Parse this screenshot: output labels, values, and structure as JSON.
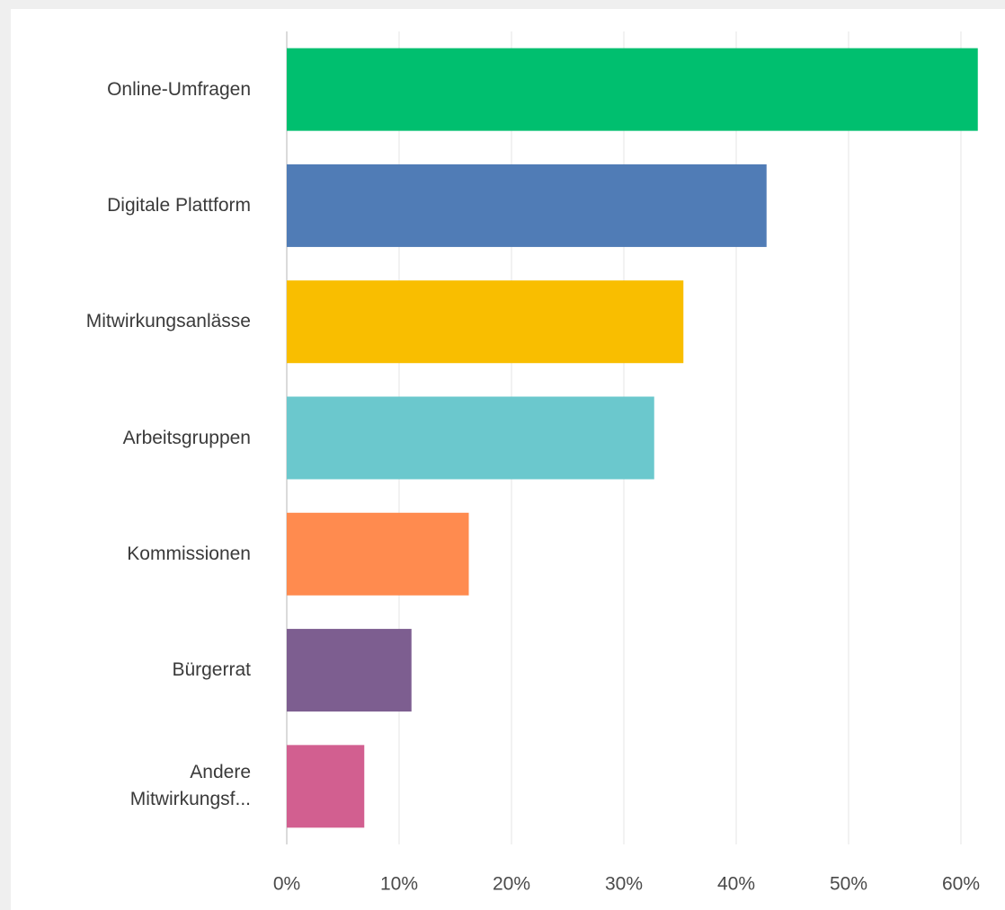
{
  "chart_data": {
    "type": "bar",
    "orientation": "horizontal",
    "categories": [
      "Online-Umfragen",
      "Digitale Plattform",
      "Mitwirkungsanlässe",
      "Arbeitsgruppen",
      "Kommissionen",
      "Bürgerrat",
      "Andere Mitwirkungsf..."
    ],
    "values": [
      61.5,
      42.7,
      35.3,
      32.7,
      16.2,
      11.1,
      6.9
    ],
    "colors": [
      "#00bf6f",
      "#507cb6",
      "#f9be00",
      "#6bc8cd",
      "#ff8b4f",
      "#7d5e90",
      "#d25f90"
    ],
    "xlim": [
      0,
      64
    ],
    "xticks": [
      {
        "value": 0,
        "label": "0%"
      },
      {
        "value": 10,
        "label": "10%"
      },
      {
        "value": 20,
        "label": "20%"
      },
      {
        "value": 30,
        "label": "30%"
      },
      {
        "value": 40,
        "label": "40%"
      },
      {
        "value": 50,
        "label": "50%"
      },
      {
        "value": 60,
        "label": "60%"
      }
    ],
    "grid": true
  }
}
